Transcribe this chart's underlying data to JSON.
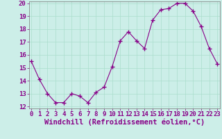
{
  "x": [
    0,
    1,
    2,
    3,
    4,
    5,
    6,
    7,
    8,
    9,
    10,
    11,
    12,
    13,
    14,
    15,
    16,
    17,
    18,
    19,
    20,
    21,
    22,
    23
  ],
  "y": [
    15.5,
    14.1,
    13.0,
    12.3,
    12.3,
    13.0,
    12.8,
    12.3,
    13.1,
    13.5,
    15.1,
    17.1,
    17.8,
    17.1,
    16.5,
    18.7,
    19.5,
    19.6,
    20.0,
    20.0,
    19.4,
    18.2,
    16.5,
    15.3
  ],
  "line_color": "#880088",
  "marker": "+",
  "marker_size": 4,
  "bg_color": "#cceee8",
  "grid_color": "#aaddcc",
  "xlabel": "Windchill (Refroidissement éolien,°C)",
  "ylim_min": 12,
  "ylim_max": 20,
  "xlim_min": 0,
  "xlim_max": 23,
  "yticks": [
    12,
    13,
    14,
    15,
    16,
    17,
    18,
    19,
    20
  ],
  "xticks": [
    0,
    1,
    2,
    3,
    4,
    5,
    6,
    7,
    8,
    9,
    10,
    11,
    12,
    13,
    14,
    15,
    16,
    17,
    18,
    19,
    20,
    21,
    22,
    23
  ],
  "xlabel_fontsize": 7.5,
  "tick_fontsize": 6.5,
  "label_color": "#880088",
  "spine_color": "#777777"
}
